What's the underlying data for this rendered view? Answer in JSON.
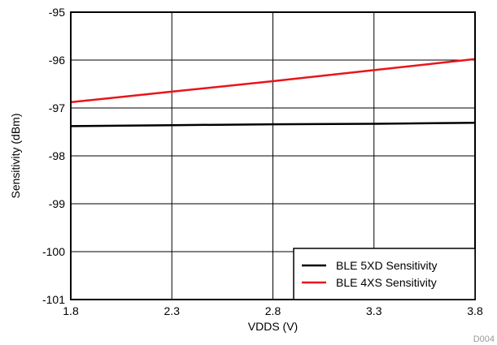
{
  "chart_data": {
    "type": "line",
    "title": "",
    "xlabel": "VDDS (V)",
    "ylabel": "Sensitivity (dBm)",
    "xlim": [
      1.8,
      3.8
    ],
    "ylim": [
      -101,
      -95
    ],
    "xticks": [
      "1.8",
      "2.3",
      "2.8",
      "3.3",
      "3.8"
    ],
    "yticks": [
      "-95",
      "-96",
      "-97",
      "-98",
      "-99",
      "-100",
      "-101"
    ],
    "grid": true,
    "legend_position": "bottom-right",
    "series": [
      {
        "name": "BLE 5XD Sensitivity",
        "color": "#000000",
        "x": [
          1.8,
          2.3,
          2.8,
          3.3,
          3.8
        ],
        "y": [
          -97.38,
          -97.36,
          -97.34,
          -97.33,
          -97.31
        ]
      },
      {
        "name": "BLE 4XS Sensitivity",
        "color": "#e8151b",
        "x": [
          1.8,
          2.3,
          2.8,
          3.3,
          3.8
        ],
        "y": [
          -96.88,
          -96.66,
          -96.44,
          -96.21,
          -95.98
        ]
      }
    ],
    "figure_id": "D004"
  }
}
